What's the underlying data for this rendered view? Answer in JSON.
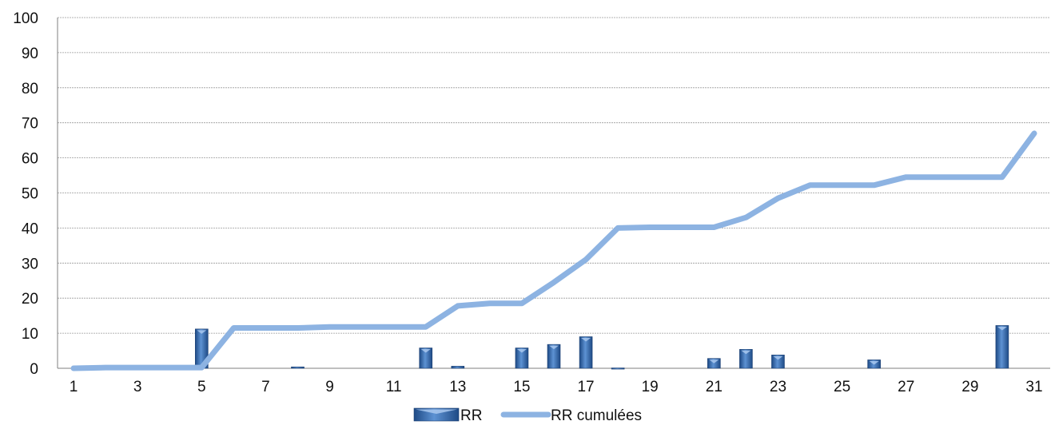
{
  "chart_data": {
    "type": "bar+line",
    "x": [
      1,
      2,
      3,
      4,
      5,
      6,
      7,
      8,
      9,
      10,
      11,
      12,
      13,
      14,
      15,
      16,
      17,
      18,
      19,
      20,
      21,
      22,
      23,
      24,
      25,
      26,
      27,
      28,
      29,
      30,
      31
    ],
    "x_tick_labels": [
      "1",
      "3",
      "5",
      "7",
      "9",
      "11",
      "13",
      "15",
      "17",
      "19",
      "21",
      "23",
      "25",
      "27",
      "29",
      "31"
    ],
    "y_tick_labels": [
      "0",
      "10",
      "20",
      "30",
      "40",
      "50",
      "60",
      "70",
      "80",
      "90",
      "100"
    ],
    "ylim": [
      0,
      100
    ],
    "grid": true,
    "legend_position": "bottom",
    "series": [
      {
        "name": "RR",
        "kind": "bar",
        "color": "#2f5f9e",
        "values": [
          0,
          0,
          0,
          0,
          11.2,
          0,
          0,
          0.4,
          0,
          0,
          0,
          5.8,
          0.6,
          0,
          5.8,
          6.8,
          9,
          0.1,
          0,
          0,
          2.8,
          5.4,
          3.8,
          0,
          0,
          2.4,
          0,
          0,
          0,
          12.2,
          0
        ]
      },
      {
        "name": "RR cumulées",
        "kind": "line",
        "color": "#8db3e2",
        "values": [
          0,
          0.2,
          0.2,
          0.2,
          0.2,
          11.5,
          11.5,
          11.5,
          11.8,
          11.8,
          11.8,
          11.8,
          17.8,
          18.5,
          18.5,
          24.5,
          31,
          40,
          40.2,
          40.2,
          40.2,
          43,
          48.5,
          52.2,
          52.2,
          52.2,
          54.5,
          54.5,
          54.5,
          54.5,
          67
        ]
      }
    ]
  }
}
